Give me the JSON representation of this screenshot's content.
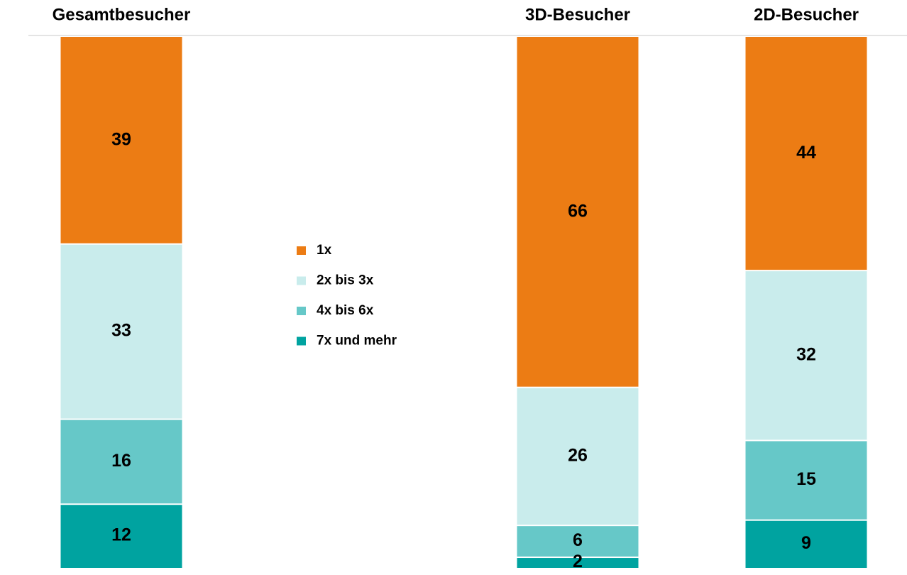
{
  "chart_data": {
    "type": "bar",
    "stacked": true,
    "categories": [
      "Gesamtbesucher",
      "3D-Besucher",
      "2D-Besucher"
    ],
    "series": [
      {
        "name": "1x",
        "color": "#ec7c14",
        "values": [
          39,
          66,
          44
        ]
      },
      {
        "name": "2x bis 3x",
        "color": "#c9ecec",
        "values": [
          33,
          26,
          32
        ]
      },
      {
        "name": "4x bis 6x",
        "color": "#66c8c8",
        "values": [
          16,
          6,
          15
        ]
      },
      {
        "name": "7x und mehr",
        "color": "#00a3a0",
        "values": [
          12,
          2,
          9
        ]
      }
    ]
  }
}
